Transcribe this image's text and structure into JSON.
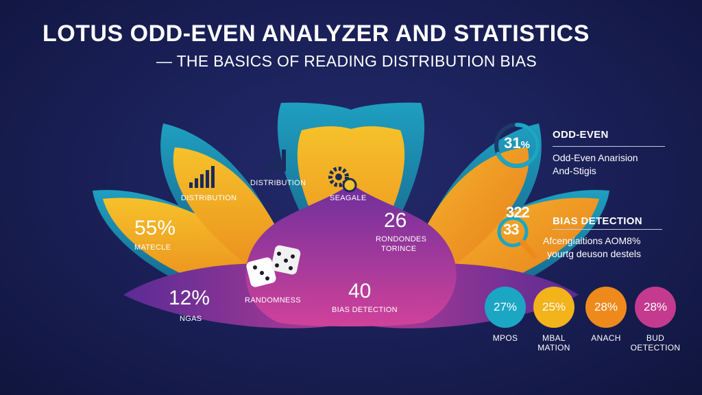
{
  "title": {
    "line1": "LOTUS ODD-EVEN ANALYZER AND STATISTICS",
    "line2": "— THE BASICS OF READING DISTRIBUTION BIAS"
  },
  "lotus": {
    "left_outer": {
      "value": "55%",
      "label": "MATECLE"
    },
    "left_inner": {
      "label": "DISTRIBUTION",
      "icon": "bar-chart-icon"
    },
    "top_center": {
      "label": "DISTRIBUTION",
      "icon": "bar-chart-icon"
    },
    "right_inner": {
      "label": "SEAGALE",
      "icon": "gears-icon"
    },
    "right_outer": {
      "value": "26",
      "label_line1": "RONDONDES",
      "label_line2": "TORINCE"
    },
    "bottom_left": {
      "value": "12%",
      "label": "NGAS"
    },
    "center": {
      "label": "RANDOMNESS",
      "icon": "dice-icon"
    },
    "bottom_right": {
      "value": "40",
      "label": "BIAS DETECTION"
    }
  },
  "panel": {
    "odd_even": {
      "ring_value": "31",
      "ring_unit": "%",
      "ring_fraction": 0.31,
      "heading": "ODD-EVEN",
      "line1": "Odd-Even Anarision",
      "line2": "And-Stigis"
    },
    "bias": {
      "icon_numbers_top": "322",
      "icon_numbers_bottom": "33",
      "heading": "BIAS DETECTION",
      "line1": "Afcengiaitions AOM8%",
      "line2": "yourtg deuson destels"
    },
    "stats": [
      {
        "value": "27%",
        "label_line1": "MPOS",
        "label_line2": "",
        "color": "#1ba6c4"
      },
      {
        "value": "25%",
        "label_line1": "MBAL",
        "label_line2": "MATION",
        "color": "#f2b31b"
      },
      {
        "value": "28%",
        "label_line1": "ANACH",
        "label_line2": "",
        "color": "#ee8a1c"
      },
      {
        "value": "28%",
        "label_line1": "BUD",
        "label_line2": "OETECTION",
        "color": "#c33a8f"
      }
    ]
  },
  "colors": {
    "background": "#191f55",
    "teal": "#1ba6c4",
    "yellow": "#f2b31b",
    "orange": "#ee8a1c",
    "magenta": "#c33a8f",
    "purple": "#7a2f9e"
  }
}
